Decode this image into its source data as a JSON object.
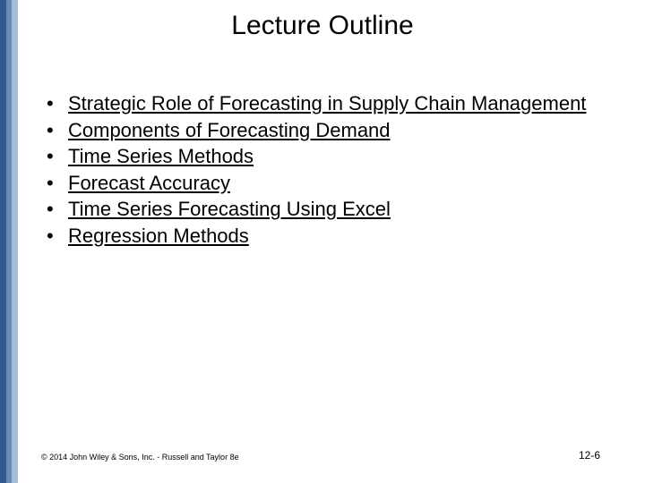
{
  "title": "Lecture Outline",
  "bullets": [
    "Strategic Role of Forecasting in Supply Chain Management",
    "Components of Forecasting Demand",
    "Time Series Methods",
    "Forecast Accuracy",
    "Time Series Forecasting Using Excel",
    "Regression Methods"
  ],
  "footer_left": "© 2014 John Wiley & Sons, Inc. - Russell and Taylor 8e",
  "footer_right": "12-6",
  "colors": {
    "background": "#ffffff",
    "text": "#000000",
    "stripe1": "#335a8d",
    "stripe2": "#6a8bb3",
    "stripe3": "#a7bcd6"
  },
  "fonts": {
    "title_size": 30,
    "bullet_size": 22,
    "footer_left_size": 9,
    "footer_right_size": 12
  }
}
